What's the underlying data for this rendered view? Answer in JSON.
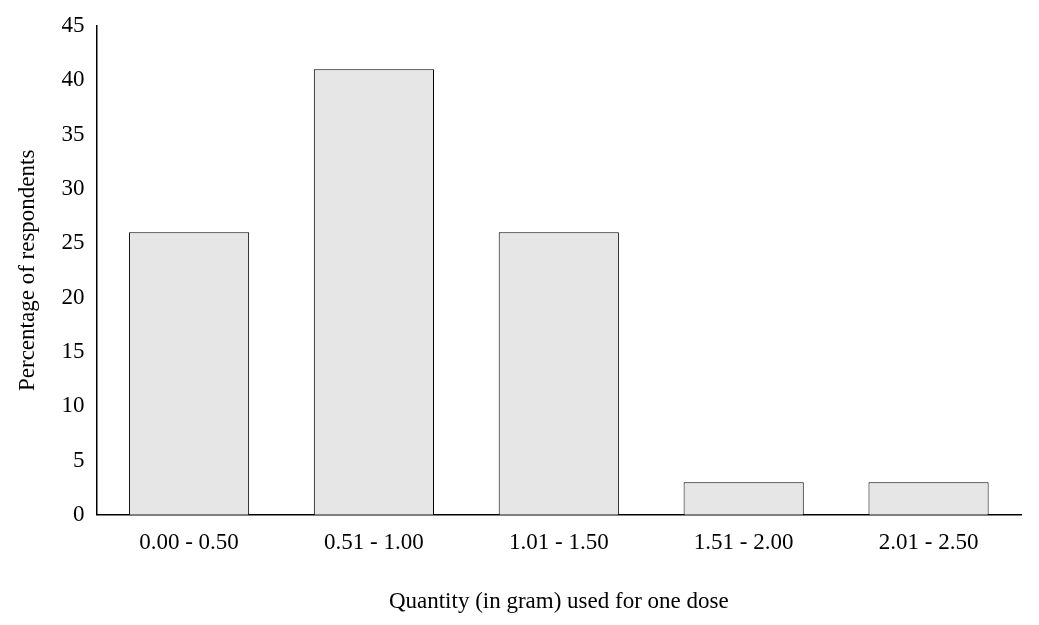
{
  "chart_data": {
    "type": "bar",
    "xlabel": "Quantity (in gram) used for one dose",
    "ylabel": "Percentage of respondents",
    "categories": [
      "0.00 - 0.50",
      "0.51 - 1.00",
      "1.01 - 1.50",
      "1.51 - 2.00",
      "2.01 - 2.50"
    ],
    "values": [
      26,
      41,
      26,
      3,
      3
    ],
    "color": "#e6e6e6",
    "ylim": [
      0,
      45
    ],
    "yticks": [
      0,
      5,
      10,
      15,
      20,
      25,
      30,
      35,
      40,
      45
    ],
    "grid": false,
    "legend": false
  }
}
